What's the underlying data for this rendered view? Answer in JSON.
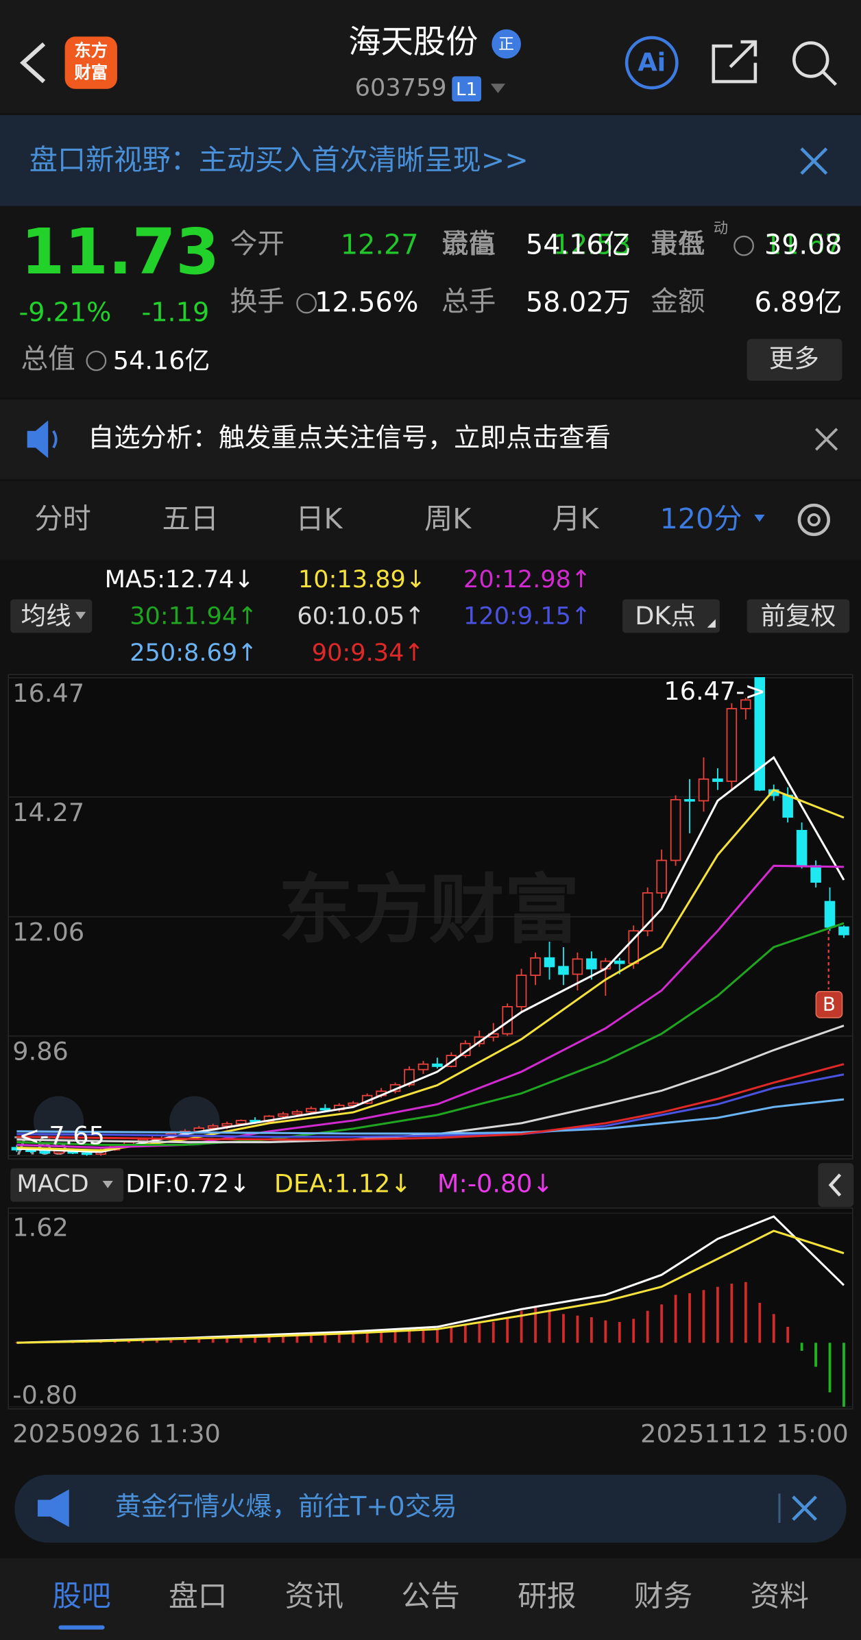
{
  "header": {
    "logo": [
      "东方",
      "财富"
    ],
    "title": "海天股份",
    "badge": "正",
    "code": "603759",
    "level": "L1",
    "ai": "Ai"
  },
  "banner": {
    "text": "盘口新视野：主动买入首次清晰呈现>>"
  },
  "quote": {
    "price": "11.73",
    "change_pct": "-9.21%",
    "change": "-1.19",
    "total_value": {
      "label": "总值",
      "value": "54.16亿"
    },
    "cells": [
      {
        "label": "今开",
        "value": "12.27",
        "color": "#22c52a"
      },
      {
        "label": "最高",
        "value": "12.53",
        "color": "#22c52a"
      },
      {
        "label": "最低",
        "value": "11.67",
        "color": "#22c52a"
      },
      {
        "label": "换手",
        "value": "12.56%",
        "color": "#ffffff"
      },
      {
        "label": "总手",
        "value": "58.02万",
        "color": "#ffffff"
      },
      {
        "label": "金额",
        "value": "6.89亿",
        "color": "#ffffff"
      },
      {
        "label": "流值",
        "value": "54.16亿",
        "color": "#ffffff"
      },
      {
        "label": "市盈",
        "sup": "动",
        "value": "39.08",
        "color": "#ffffff"
      }
    ],
    "more": "更多"
  },
  "notice": {
    "text": "自选分析：触发重点关注信号，立即点击查看"
  },
  "tabs": [
    "分时",
    "五日",
    "日K",
    "周K",
    "月K",
    "120分"
  ],
  "chart_data": {
    "type": "candlestick",
    "buttons": {
      "ma": "均线",
      "dk": "DK点",
      "adjust": "前复权"
    },
    "watermark": "东方财富",
    "ylim": [
      7.65,
      16.47
    ],
    "yticks": [
      16.47,
      14.27,
      12.06,
      9.86,
      7.65
    ],
    "up_color": "#e8403a",
    "down_color": "#1ee8f0",
    "candles": [
      [
        7.8,
        7.85,
        7.72,
        7.76
      ],
      [
        7.76,
        7.8,
        7.7,
        7.73
      ],
      [
        7.73,
        7.78,
        7.68,
        7.7
      ],
      [
        7.7,
        7.76,
        7.67,
        7.74
      ],
      [
        7.74,
        7.78,
        7.68,
        7.7
      ],
      [
        7.7,
        7.74,
        7.65,
        7.68
      ],
      [
        7.68,
        7.78,
        7.65,
        7.76
      ],
      [
        7.76,
        7.86,
        7.74,
        7.84
      ],
      [
        7.84,
        7.92,
        7.8,
        7.9
      ],
      [
        7.9,
        7.98,
        7.86,
        7.95
      ],
      [
        7.95,
        8.05,
        7.92,
        8.02
      ],
      [
        8.02,
        8.1,
        7.98,
        8.06
      ],
      [
        8.06,
        8.14,
        8.02,
        8.1
      ],
      [
        8.1,
        8.2,
        8.06,
        8.16
      ],
      [
        8.16,
        8.24,
        8.12,
        8.2
      ],
      [
        8.2,
        8.28,
        8.14,
        8.24
      ],
      [
        8.24,
        8.32,
        8.2,
        8.3
      ],
      [
        8.3,
        8.36,
        8.24,
        8.28
      ],
      [
        8.28,
        8.4,
        8.26,
        8.38
      ],
      [
        8.38,
        8.46,
        8.34,
        8.42
      ],
      [
        8.42,
        8.5,
        8.38,
        8.46
      ],
      [
        8.46,
        8.56,
        8.42,
        8.52
      ],
      [
        8.52,
        8.6,
        8.48,
        8.5
      ],
      [
        8.5,
        8.62,
        8.46,
        8.58
      ],
      [
        8.58,
        8.66,
        8.54,
        8.62
      ],
      [
        8.62,
        8.8,
        8.6,
        8.76
      ],
      [
        8.76,
        8.9,
        8.72,
        8.84
      ],
      [
        8.84,
        9.0,
        8.8,
        8.96
      ],
      [
        8.96,
        9.3,
        8.92,
        9.24
      ],
      [
        9.24,
        9.4,
        9.16,
        9.34
      ],
      [
        9.34,
        9.46,
        9.26,
        9.3
      ],
      [
        9.3,
        9.56,
        9.28,
        9.5
      ],
      [
        9.5,
        9.78,
        9.46,
        9.72
      ],
      [
        9.72,
        9.96,
        9.66,
        9.84
      ],
      [
        9.84,
        10.1,
        9.76,
        9.9
      ],
      [
        9.9,
        10.46,
        9.86,
        10.4
      ],
      [
        10.4,
        11.1,
        10.3,
        10.98
      ],
      [
        10.98,
        11.4,
        10.8,
        11.3
      ],
      [
        11.3,
        11.6,
        10.9,
        11.14
      ],
      [
        11.14,
        11.5,
        10.8,
        11.0
      ],
      [
        11.0,
        11.4,
        10.7,
        11.28
      ],
      [
        11.28,
        11.42,
        10.9,
        11.1
      ],
      [
        11.1,
        11.3,
        10.6,
        11.24
      ],
      [
        11.24,
        11.3,
        11.0,
        11.2
      ],
      [
        11.2,
        11.9,
        11.1,
        11.8
      ],
      [
        11.8,
        12.6,
        11.7,
        12.5
      ],
      [
        12.5,
        13.3,
        12.4,
        13.1
      ],
      [
        13.1,
        14.3,
        13.0,
        14.22
      ],
      [
        14.22,
        14.6,
        13.6,
        14.2
      ],
      [
        14.2,
        15.0,
        14.0,
        14.6
      ],
      [
        14.6,
        14.8,
        14.4,
        14.56
      ],
      [
        14.56,
        16.0,
        14.4,
        15.9
      ],
      [
        15.9,
        16.1,
        15.7,
        16.06
      ],
      [
        16.47,
        16.47,
        14.38,
        14.4
      ],
      [
        14.4,
        14.5,
        14.2,
        14.3
      ],
      [
        14.3,
        14.45,
        13.8,
        13.9
      ],
      [
        13.65,
        13.8,
        12.95,
        13.0
      ],
      [
        13.0,
        13.1,
        12.6,
        12.7
      ],
      [
        12.34,
        12.6,
        11.8,
        11.87
      ],
      [
        11.87,
        11.9,
        11.67,
        11.73
      ]
    ],
    "ma_x": [
      0,
      6,
      12,
      18,
      24,
      30,
      36,
      42,
      46,
      50,
      54,
      59
    ],
    "series": [
      {
        "label": "MA5:12.74↓",
        "color": "#ffffff",
        "values": [
          7.78,
          7.72,
          8.05,
          8.3,
          8.55,
          9.2,
          10.3,
          11.1,
          12.2,
          14.2,
          15.0,
          12.74
        ]
      },
      {
        "label": "10:13.89↓",
        "color": "#f5e23a",
        "values": [
          7.8,
          7.75,
          7.95,
          8.25,
          8.45,
          8.95,
          9.8,
          10.9,
          11.5,
          13.2,
          14.4,
          13.89
        ]
      },
      {
        "label": "20:12.98↑",
        "color": "#d12ad1",
        "values": [
          7.85,
          7.8,
          7.85,
          8.1,
          8.3,
          8.6,
          9.2,
          10.0,
          10.7,
          11.8,
          13.0,
          12.98
        ]
      },
      {
        "label": "30:11.94↑",
        "color": "#1fa51f",
        "values": [
          7.9,
          7.85,
          7.85,
          7.95,
          8.15,
          8.4,
          8.8,
          9.4,
          9.9,
          10.6,
          11.5,
          11.94
        ]
      },
      {
        "label": "60:10.05↑",
        "color": "#d8d8d8",
        "values": [
          7.95,
          7.92,
          7.9,
          7.9,
          7.95,
          8.05,
          8.25,
          8.6,
          8.85,
          9.2,
          9.6,
          10.05
        ]
      },
      {
        "label": "120:9.15↑",
        "color": "#4a52e0",
        "values": [
          8.05,
          8.04,
          8.02,
          8.0,
          8.0,
          8.02,
          8.05,
          8.2,
          8.4,
          8.6,
          8.9,
          9.15
        ]
      },
      {
        "label": "250:8.69↑",
        "color": "#6ab4f5",
        "values": [
          8.1,
          8.09,
          8.08,
          8.07,
          8.06,
          8.06,
          8.08,
          8.15,
          8.25,
          8.35,
          8.55,
          8.69
        ]
      },
      {
        "label": "90:9.34↑",
        "color": "#e02828",
        "values": [
          8.0,
          7.98,
          7.96,
          7.95,
          7.95,
          7.98,
          8.05,
          8.25,
          8.45,
          8.7,
          9.0,
          9.34
        ]
      }
    ],
    "annotations": {
      "high": "16.47->",
      "low": "<-7.65",
      "signal": "B"
    },
    "macd": {
      "name": "MACD",
      "ylim": [
        -0.8,
        1.62
      ],
      "yticks": [
        1.62,
        {
          "value": -0.8,
          "label": "-0.80"
        }
      ],
      "dif": {
        "label": "DIF:0.72↓",
        "color": "#ffffff",
        "values": [
          0.0,
          0.03,
          0.06,
          0.1,
          0.14,
          0.2,
          0.42,
          0.6,
          0.85,
          1.3,
          1.58,
          0.72
        ]
      },
      "dea": {
        "label": "DEA:1.12↓",
        "color": "#f5e23a",
        "values": [
          0.0,
          0.02,
          0.05,
          0.08,
          0.12,
          0.17,
          0.34,
          0.52,
          0.7,
          1.05,
          1.4,
          1.12
        ]
      },
      "m_label": "M:-0.80↓",
      "m_label_color": "#e83ae8",
      "bars": [
        0.01,
        0.01,
        0.01,
        0.01,
        0.01,
        0.02,
        0.02,
        0.02,
        0.03,
        0.04,
        0.05,
        0.06,
        0.07,
        0.07,
        0.08,
        0.08,
        0.09,
        0.09,
        0.1,
        0.1,
        0.1,
        0.11,
        0.11,
        0.12,
        0.12,
        0.14,
        0.15,
        0.16,
        0.18,
        0.19,
        0.18,
        0.2,
        0.22,
        0.24,
        0.26,
        0.32,
        0.4,
        0.46,
        0.4,
        0.36,
        0.34,
        0.32,
        0.28,
        0.26,
        0.3,
        0.4,
        0.48,
        0.6,
        0.62,
        0.66,
        0.7,
        0.74,
        0.76,
        0.5,
        0.36,
        0.2,
        -0.1,
        -0.3,
        -0.62,
        -0.8
      ]
    },
    "x_labels": [
      "20250926 11:30",
      "20251112 15:00"
    ]
  },
  "ad": {
    "text": "黄金行情火爆，前往T+0交易"
  },
  "nav": [
    "股吧",
    "盘口",
    "资讯",
    "公告",
    "研报",
    "财务",
    "资料"
  ]
}
